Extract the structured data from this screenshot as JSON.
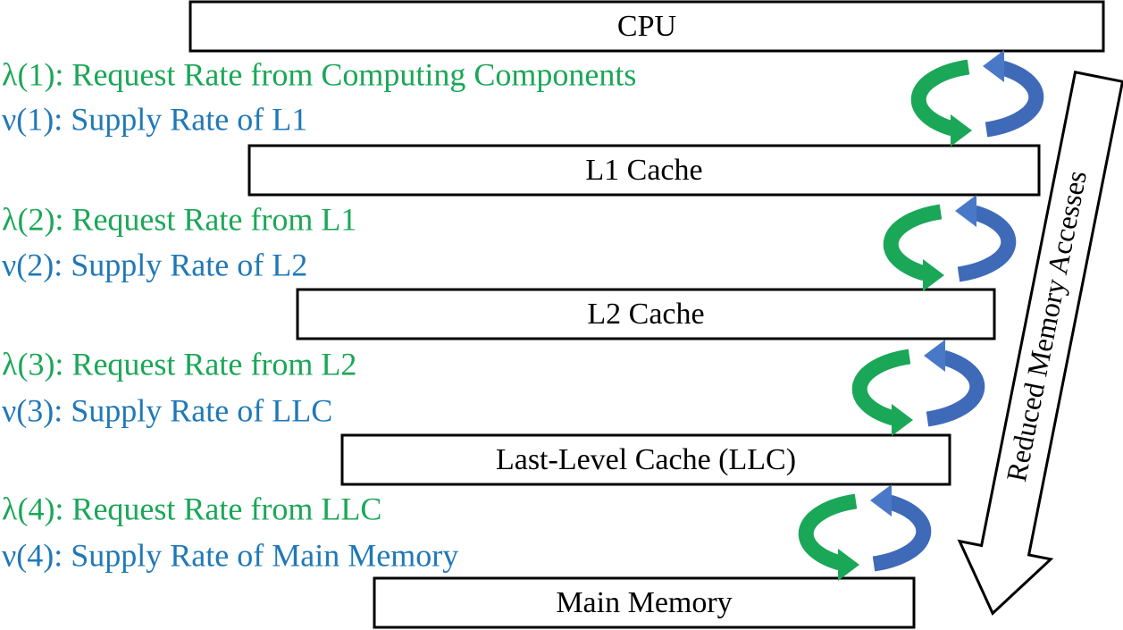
{
  "boxes": [
    "CPU",
    "L1 Cache",
    "L2 Cache",
    "Last-Level Cache (LLC)",
    "Main Memory"
  ],
  "rates": [
    {
      "request": "λ(1): Request Rate from Computing Components",
      "supply": "ν(1): Supply Rate of L1"
    },
    {
      "request": "λ(2): Request Rate from L1",
      "supply": "ν(2): Supply Rate of L2"
    },
    {
      "request": "λ(3): Request Rate from L2",
      "supply": "ν(3): Supply Rate of LLC"
    },
    {
      "request": "λ(4): Request Rate from LLC",
      "supply": "ν(4): Supply Rate of Main Memory"
    }
  ],
  "arrow_label": "Reduced Memory Accesses"
}
